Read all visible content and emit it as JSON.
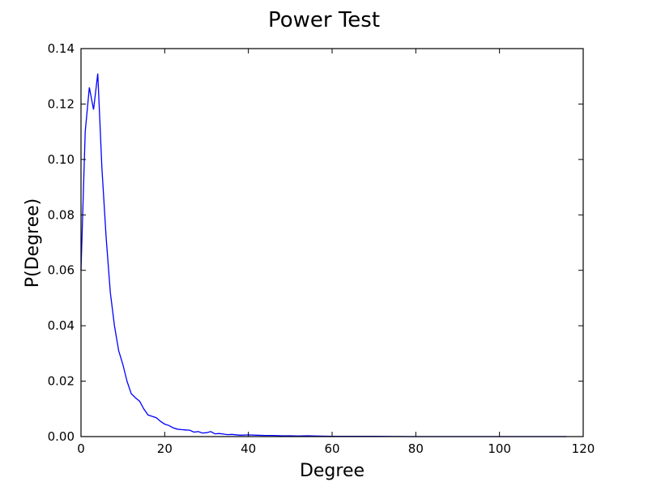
{
  "chart_data": {
    "type": "line",
    "title": "Power Test",
    "xlabel": "Degree",
    "ylabel": "P(Degree)",
    "xlim": [
      0,
      120
    ],
    "ylim": [
      0,
      0.14
    ],
    "x_ticks": [
      "0",
      "20",
      "40",
      "60",
      "80",
      "100",
      "120"
    ],
    "y_ticks": [
      "0.00",
      "0.02",
      "0.04",
      "0.06",
      "0.08",
      "0.10",
      "0.12",
      "0.14"
    ],
    "grid": false,
    "legend": "none",
    "series": [
      {
        "color": "#0000ff",
        "x": [
          0,
          1,
          2,
          3,
          4,
          5,
          6,
          7,
          8,
          9,
          10,
          11,
          12,
          13,
          14,
          15,
          16,
          17,
          18,
          19,
          20,
          21,
          22,
          23,
          24,
          25,
          26,
          27,
          28,
          29,
          30,
          31,
          32,
          33,
          34,
          35,
          36,
          38,
          40,
          42,
          44,
          46,
          48,
          50,
          52,
          54,
          56,
          60,
          65,
          70,
          80,
          90,
          100,
          110,
          116
        ],
        "y": [
          0.06,
          0.11,
          0.126,
          0.118,
          0.131,
          0.097,
          0.072,
          0.052,
          0.04,
          0.031,
          0.026,
          0.02,
          0.0155,
          0.014,
          0.0128,
          0.01,
          0.0078,
          0.0073,
          0.0068,
          0.0055,
          0.0045,
          0.004,
          0.0032,
          0.0027,
          0.0025,
          0.0024,
          0.0023,
          0.0016,
          0.0018,
          0.0013,
          0.0014,
          0.0018,
          0.001,
          0.0011,
          0.0009,
          0.0007,
          0.0008,
          0.0005,
          0.0006,
          0.0005,
          0.0004,
          0.0004,
          0.0003,
          0.0003,
          0.0002,
          0.0003,
          0.0002,
          0.0001,
          0.0001,
          0.0001,
          0.0,
          0.0,
          0.0,
          0.0,
          0.0
        ]
      }
    ]
  }
}
